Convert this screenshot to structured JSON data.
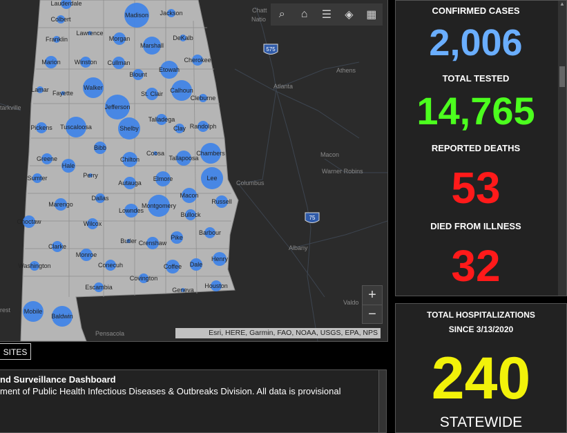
{
  "map": {
    "toolbar": [
      {
        "name": "search-icon",
        "glyph": "⌕"
      },
      {
        "name": "home-icon",
        "glyph": "⌂"
      },
      {
        "name": "legend-icon",
        "glyph": "☰"
      },
      {
        "name": "layers-icon",
        "glyph": "◈"
      },
      {
        "name": "basemap-gallery-icon",
        "glyph": "▦"
      }
    ],
    "zoom_in": "+",
    "zoom_out": "−",
    "attribution": "Esri, HERE, Garmin, FAO, NOAA, USGS, EPA, NPS",
    "counties": [
      {
        "name": "Lauderdale",
        "r": 8
      },
      {
        "name": "Madison",
        "r": 18
      },
      {
        "name": "Jackson",
        "r": 6
      },
      {
        "name": "Colbert",
        "r": 6
      },
      {
        "name": "Lawrence",
        "r": 3
      },
      {
        "name": "Franklin",
        "r": 5
      },
      {
        "name": "Morgan",
        "r": 9
      },
      {
        "name": "Marshall",
        "r": 13
      },
      {
        "name": "DeKalb",
        "r": 5
      },
      {
        "name": "Marion",
        "r": 9
      },
      {
        "name": "Winston",
        "r": 8
      },
      {
        "name": "Cullman",
        "r": 9
      },
      {
        "name": "Etowah",
        "r": 13
      },
      {
        "name": "Cherokee",
        "r": 8
      },
      {
        "name": "Blount",
        "r": 8
      },
      {
        "name": "Lamar",
        "r": 5
      },
      {
        "name": "Fayette",
        "r": 3
      },
      {
        "name": "Walker",
        "r": 15
      },
      {
        "name": "St. Clair",
        "r": 9
      },
      {
        "name": "Calhoun",
        "r": 15
      },
      {
        "name": "Cleburne",
        "r": 6
      },
      {
        "name": "Jefferson",
        "r": 18
      },
      {
        "name": "Pickens",
        "r": 8
      },
      {
        "name": "Tuscaloosa",
        "r": 15
      },
      {
        "name": "Shelby",
        "r": 16
      },
      {
        "name": "Talladega",
        "r": 8
      },
      {
        "name": "Clay",
        "r": 7
      },
      {
        "name": "Randolph",
        "r": 8
      },
      {
        "name": "Bibb",
        "r": 9
      },
      {
        "name": "Coosa",
        "r": 3
      },
      {
        "name": "Tallapoosa",
        "r": 11
      },
      {
        "name": "Greene",
        "r": 8
      },
      {
        "name": "Hale",
        "r": 10
      },
      {
        "name": "Perry",
        "r": 3
      },
      {
        "name": "Chilton",
        "r": 11
      },
      {
        "name": "Sumter",
        "r": 7
      },
      {
        "name": "Autauga",
        "r": 9
      },
      {
        "name": "Elmore",
        "r": 11
      },
      {
        "name": "Lee",
        "r": 16
      },
      {
        "name": "Chambers",
        "r": 15
      },
      {
        "name": "Dallas",
        "r": 7
      },
      {
        "name": "Macon",
        "r": 11
      },
      {
        "name": "Marengo",
        "r": 9
      },
      {
        "name": "Lowndes",
        "r": 10
      },
      {
        "name": "Montgomery",
        "r": 16
      },
      {
        "name": "Bullock",
        "r": 8
      },
      {
        "name": "Russell",
        "r": 9
      },
      {
        "name": "Choctaw",
        "r": 9
      },
      {
        "name": "Wilcox",
        "r": 8
      },
      {
        "name": "Barbour",
        "r": 8
      },
      {
        "name": "Butler",
        "r": 3
      },
      {
        "name": "Crenshaw",
        "r": 9
      },
      {
        "name": "Pike",
        "r": 9
      },
      {
        "name": "Clarke",
        "r": 8
      },
      {
        "name": "Monroe",
        "r": 9
      },
      {
        "name": "Henry",
        "r": 10
      },
      {
        "name": "Washington",
        "r": 7
      },
      {
        "name": "Conecuh",
        "r": 8
      },
      {
        "name": "Coffee",
        "r": 10
      },
      {
        "name": "Dale",
        "r": 9
      },
      {
        "name": "Escambia",
        "r": 7
      },
      {
        "name": "Covington",
        "r": 7
      },
      {
        "name": "Geneva",
        "r": 3
      },
      {
        "name": "Houston",
        "r": 8
      },
      {
        "name": "Mobile",
        "r": 15
      },
      {
        "name": "Baldwin",
        "r": 15
      }
    ],
    "cities": [
      {
        "name": "Chatt"
      },
      {
        "name": "Natio"
      },
      {
        "name": "Athens"
      },
      {
        "name": "Atlanta"
      },
      {
        "name": "Macon"
      },
      {
        "name": "Warner Robins"
      },
      {
        "name": "Columbus"
      },
      {
        "name": "Albany"
      },
      {
        "name": "Valdo"
      },
      {
        "name": "Pensacola"
      },
      {
        "name": "tarkville"
      },
      {
        "name": "rest"
      }
    ],
    "interstates": [
      "575",
      "75"
    ]
  },
  "stats": {
    "confirmed_label": "CONFIRMED CASES",
    "confirmed_value": "2,006",
    "tested_label": "TOTAL TESTED",
    "tested_value": "14,765",
    "deaths_label": "REPORTED DEATHS",
    "deaths_value": "53",
    "illness_label": "DIED FROM ILLNESS",
    "illness_value": "32",
    "colors": {
      "confirmed": "#6aaeff",
      "tested": "#4cff1e",
      "deaths": "#ff1a1a",
      "hosp": "#f2f20a"
    }
  },
  "hospital": {
    "title_line1": "TOTAL HOSPITALIZATIONS",
    "title_line2": "SINCE 3/13/2020",
    "value": "240",
    "subtitle": "STATEWIDE"
  },
  "tab_label": "SITES",
  "info": {
    "title": "nd Surveillance Dashboard",
    "text": "ment of Public Health Infectious Diseases & Outbreaks Division. All data is provisional"
  }
}
